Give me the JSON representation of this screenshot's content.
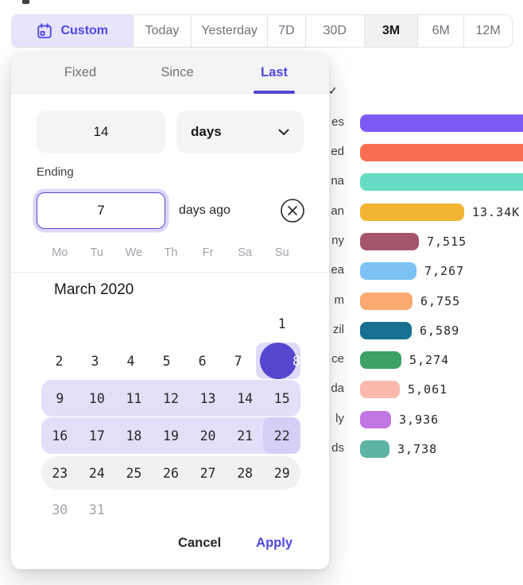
{
  "accent": "#4f46e5",
  "toolbar": {
    "items": [
      {
        "label": "Custom",
        "icon": "calendar-icon",
        "style": "custom"
      },
      {
        "label": "Today"
      },
      {
        "label": "Yesterday"
      },
      {
        "label": "7D"
      },
      {
        "label": "30D"
      },
      {
        "label": "3M",
        "style": "selected"
      },
      {
        "label": "6M"
      },
      {
        "label": "12M"
      }
    ]
  },
  "panel": {
    "tabs": [
      {
        "label": "Fixed",
        "active": false
      },
      {
        "label": "Since",
        "active": false
      },
      {
        "label": "Last",
        "active": true
      }
    ],
    "count_input": "14",
    "unit_select_value": "days",
    "unit_select_icon": "chevron-down-icon",
    "ending_label": "Ending",
    "ending_input": "7",
    "ending_suffix": "days ago",
    "clear_icon": "x-circle-icon",
    "calendar": {
      "weekdays": [
        "Mo",
        "Tu",
        "We",
        "Th",
        "Fr",
        "Sa",
        "Su"
      ],
      "month_title": "March 2020",
      "weeks": [
        {
          "style": "",
          "days": [
            "",
            "",
            "",
            "",
            "",
            "",
            "1"
          ]
        },
        {
          "style": "",
          "days": [
            "2",
            "3",
            "4",
            "5",
            "6",
            "7",
            "8"
          ],
          "selected_index": 6
        },
        {
          "style": "range",
          "days": [
            "9",
            "10",
            "11",
            "12",
            "13",
            "14",
            "15"
          ]
        },
        {
          "style": "range",
          "days": [
            "16",
            "17",
            "18",
            "19",
            "20",
            "21",
            "22"
          ],
          "end_index": 6
        },
        {
          "style": "pill",
          "days": [
            "23",
            "24",
            "25",
            "26",
            "27",
            "28",
            "29"
          ]
        },
        {
          "style": "",
          "days": [
            "30",
            "31",
            "",
            "",
            "",
            "",
            ""
          ],
          "muted": true
        }
      ],
      "selected_day": "8"
    },
    "cancel_label": "Cancel",
    "apply_label": "Apply"
  },
  "chart_data": {
    "type": "bar",
    "orientation": "horizontal",
    "note": "horizontal bar list partially hidden behind the date picker; row labels are truncated at their left side and the top three bars run off the right edge of the screenshot so their values are not visible",
    "rows": [
      {
        "label_visible": "es",
        "value": null,
        "value_label": "",
        "color": "#7c5bf5",
        "cut_off": true
      },
      {
        "label_visible": "ed",
        "value": null,
        "value_label": "",
        "color": "#f96d51",
        "cut_off": true
      },
      {
        "label_visible": "na",
        "value": null,
        "value_label": "",
        "color": "#67dcc4",
        "cut_off": true
      },
      {
        "label_visible": "an",
        "value": 13340,
        "value_label": "13.34K",
        "color": "#f1b434",
        "cut_off": false
      },
      {
        "label_visible": "ny",
        "value": 7515,
        "value_label": "7,515",
        "color": "#a5566c",
        "cut_off": false
      },
      {
        "label_visible": "ea",
        "value": 7267,
        "value_label": "7,267",
        "color": "#7dc2f4",
        "cut_off": false
      },
      {
        "label_visible": "m",
        "value": 6755,
        "value_label": "6,755",
        "color": "#fba970",
        "cut_off": false
      },
      {
        "label_visible": "zil",
        "value": 6589,
        "value_label": "6,589",
        "color": "#15718f",
        "cut_off": false
      },
      {
        "label_visible": "ce",
        "value": 5274,
        "value_label": "5,274",
        "color": "#3da065",
        "cut_off": false
      },
      {
        "label_visible": "da",
        "value": 5061,
        "value_label": "5,061",
        "color": "#fbb9ae",
        "cut_off": false
      },
      {
        "label_visible": "ly",
        "value": 3936,
        "value_label": "3,936",
        "color": "#c276e2",
        "cut_off": false
      },
      {
        "label_visible": "ds",
        "value": 3738,
        "value_label": "3,738",
        "color": "#5eb4a4",
        "cut_off": false
      }
    ],
    "background_checkmark": "✓"
  }
}
